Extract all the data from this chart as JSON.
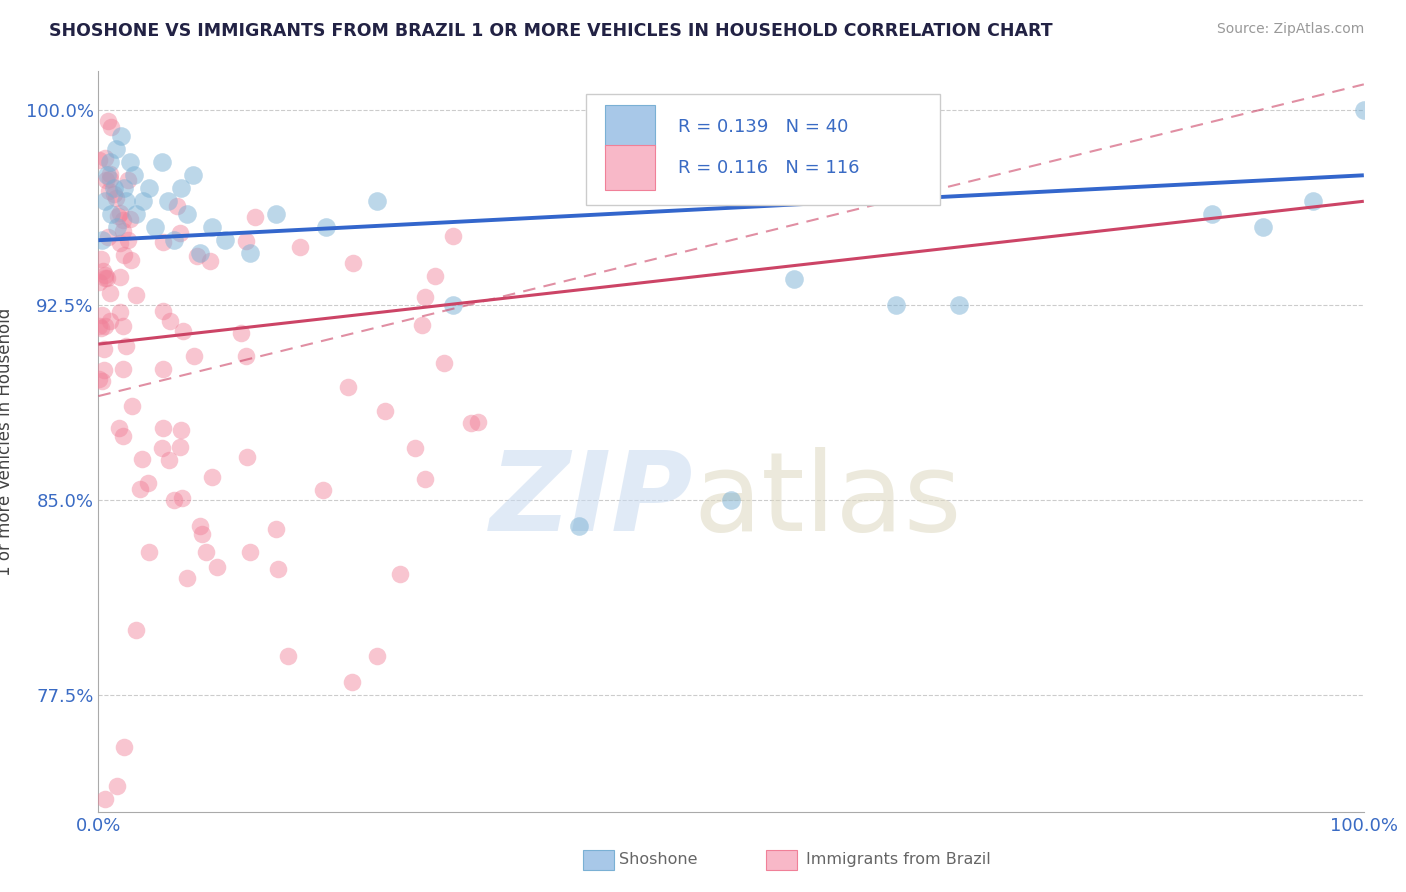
{
  "title": "SHOSHONE VS IMMIGRANTS FROM BRAZIL 1 OR MORE VEHICLES IN HOUSEHOLD CORRELATION CHART",
  "source": "Source: ZipAtlas.com",
  "ylabel": "1 or more Vehicles in Household",
  "xlim": [
    0,
    100
  ],
  "ylim": [
    73.0,
    101.5
  ],
  "yticks": [
    77.5,
    85.0,
    92.5,
    100.0
  ],
  "ytick_labels": [
    "77.5%",
    "85.0%",
    "92.5%",
    "100.0%"
  ],
  "shoshone_color": "#7ab0d4",
  "brazil_color": "#f08098",
  "shoshone_line_color": "#3366cc",
  "brazil_line_color": "#cc4466",
  "background_color": "#ffffff",
  "shoshone_trend": [
    95.0,
    97.5
  ],
  "brazil_trend_solid": [
    91.0,
    96.5
  ],
  "brazil_trend_dashed": [
    89.0,
    101.0
  ]
}
